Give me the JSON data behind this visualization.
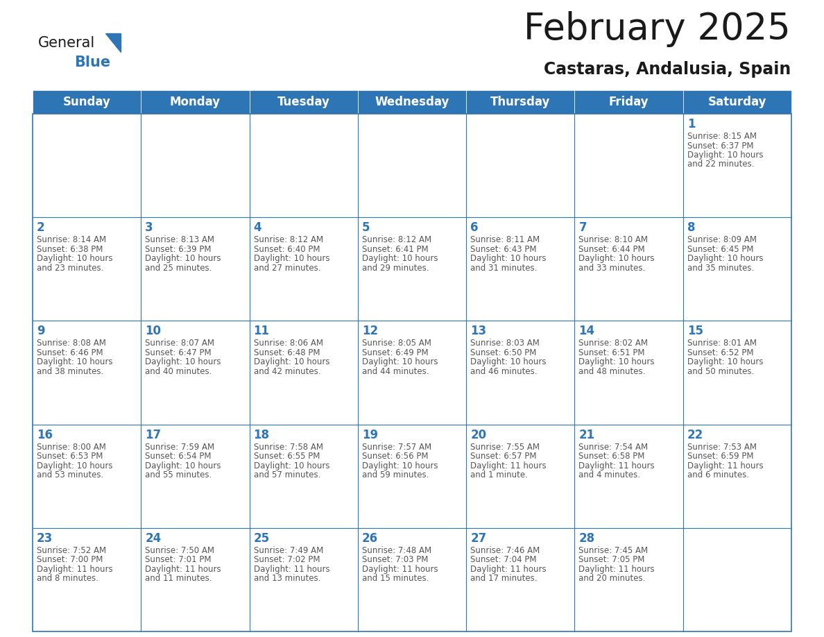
{
  "title": "February 2025",
  "subtitle": "Castaras, Andalusia, Spain",
  "header_bg": "#2E75B6",
  "header_text_color": "#FFFFFF",
  "cell_bg": "#FFFFFF",
  "cell_border_color": "#2E75B6",
  "day_number_color": "#2E75B6",
  "info_text_color": "#555555",
  "days_of_week": [
    "Sunday",
    "Monday",
    "Tuesday",
    "Wednesday",
    "Thursday",
    "Friday",
    "Saturday"
  ],
  "weeks": [
    [
      null,
      null,
      null,
      null,
      null,
      null,
      {
        "day": 1,
        "sunrise": "8:15 AM",
        "sunset": "6:37 PM",
        "daylight_line1": "10 hours",
        "daylight_line2": "and 22 minutes."
      }
    ],
    [
      {
        "day": 2,
        "sunrise": "8:14 AM",
        "sunset": "6:38 PM",
        "daylight_line1": "10 hours",
        "daylight_line2": "and 23 minutes."
      },
      {
        "day": 3,
        "sunrise": "8:13 AM",
        "sunset": "6:39 PM",
        "daylight_line1": "10 hours",
        "daylight_line2": "and 25 minutes."
      },
      {
        "day": 4,
        "sunrise": "8:12 AM",
        "sunset": "6:40 PM",
        "daylight_line1": "10 hours",
        "daylight_line2": "and 27 minutes."
      },
      {
        "day": 5,
        "sunrise": "8:12 AM",
        "sunset": "6:41 PM",
        "daylight_line1": "10 hours",
        "daylight_line2": "and 29 minutes."
      },
      {
        "day": 6,
        "sunrise": "8:11 AM",
        "sunset": "6:43 PM",
        "daylight_line1": "10 hours",
        "daylight_line2": "and 31 minutes."
      },
      {
        "day": 7,
        "sunrise": "8:10 AM",
        "sunset": "6:44 PM",
        "daylight_line1": "10 hours",
        "daylight_line2": "and 33 minutes."
      },
      {
        "day": 8,
        "sunrise": "8:09 AM",
        "sunset": "6:45 PM",
        "daylight_line1": "10 hours",
        "daylight_line2": "and 35 minutes."
      }
    ],
    [
      {
        "day": 9,
        "sunrise": "8:08 AM",
        "sunset": "6:46 PM",
        "daylight_line1": "10 hours",
        "daylight_line2": "and 38 minutes."
      },
      {
        "day": 10,
        "sunrise": "8:07 AM",
        "sunset": "6:47 PM",
        "daylight_line1": "10 hours",
        "daylight_line2": "and 40 minutes."
      },
      {
        "day": 11,
        "sunrise": "8:06 AM",
        "sunset": "6:48 PM",
        "daylight_line1": "10 hours",
        "daylight_line2": "and 42 minutes."
      },
      {
        "day": 12,
        "sunrise": "8:05 AM",
        "sunset": "6:49 PM",
        "daylight_line1": "10 hours",
        "daylight_line2": "and 44 minutes."
      },
      {
        "day": 13,
        "sunrise": "8:03 AM",
        "sunset": "6:50 PM",
        "daylight_line1": "10 hours",
        "daylight_line2": "and 46 minutes."
      },
      {
        "day": 14,
        "sunrise": "8:02 AM",
        "sunset": "6:51 PM",
        "daylight_line1": "10 hours",
        "daylight_line2": "and 48 minutes."
      },
      {
        "day": 15,
        "sunrise": "8:01 AM",
        "sunset": "6:52 PM",
        "daylight_line1": "10 hours",
        "daylight_line2": "and 50 minutes."
      }
    ],
    [
      {
        "day": 16,
        "sunrise": "8:00 AM",
        "sunset": "6:53 PM",
        "daylight_line1": "10 hours",
        "daylight_line2": "and 53 minutes."
      },
      {
        "day": 17,
        "sunrise": "7:59 AM",
        "sunset": "6:54 PM",
        "daylight_line1": "10 hours",
        "daylight_line2": "and 55 minutes."
      },
      {
        "day": 18,
        "sunrise": "7:58 AM",
        "sunset": "6:55 PM",
        "daylight_line1": "10 hours",
        "daylight_line2": "and 57 minutes."
      },
      {
        "day": 19,
        "sunrise": "7:57 AM",
        "sunset": "6:56 PM",
        "daylight_line1": "10 hours",
        "daylight_line2": "and 59 minutes."
      },
      {
        "day": 20,
        "sunrise": "7:55 AM",
        "sunset": "6:57 PM",
        "daylight_line1": "11 hours",
        "daylight_line2": "and 1 minute."
      },
      {
        "day": 21,
        "sunrise": "7:54 AM",
        "sunset": "6:58 PM",
        "daylight_line1": "11 hours",
        "daylight_line2": "and 4 minutes."
      },
      {
        "day": 22,
        "sunrise": "7:53 AM",
        "sunset": "6:59 PM",
        "daylight_line1": "11 hours",
        "daylight_line2": "and 6 minutes."
      }
    ],
    [
      {
        "day": 23,
        "sunrise": "7:52 AM",
        "sunset": "7:00 PM",
        "daylight_line1": "11 hours",
        "daylight_line2": "and 8 minutes."
      },
      {
        "day": 24,
        "sunrise": "7:50 AM",
        "sunset": "7:01 PM",
        "daylight_line1": "11 hours",
        "daylight_line2": "and 11 minutes."
      },
      {
        "day": 25,
        "sunrise": "7:49 AM",
        "sunset": "7:02 PM",
        "daylight_line1": "11 hours",
        "daylight_line2": "and 13 minutes."
      },
      {
        "day": 26,
        "sunrise": "7:48 AM",
        "sunset": "7:03 PM",
        "daylight_line1": "11 hours",
        "daylight_line2": "and 15 minutes."
      },
      {
        "day": 27,
        "sunrise": "7:46 AM",
        "sunset": "7:04 PM",
        "daylight_line1": "11 hours",
        "daylight_line2": "and 17 minutes."
      },
      {
        "day": 28,
        "sunrise": "7:45 AM",
        "sunset": "7:05 PM",
        "daylight_line1": "11 hours",
        "daylight_line2": "and 20 minutes."
      },
      null
    ]
  ],
  "logo_general_color": "#1a1a1a",
  "logo_blue_color": "#2E75B6",
  "title_fontsize": 38,
  "subtitle_fontsize": 17,
  "header_fontsize": 12,
  "day_number_fontsize": 12,
  "info_fontsize": 8.5
}
